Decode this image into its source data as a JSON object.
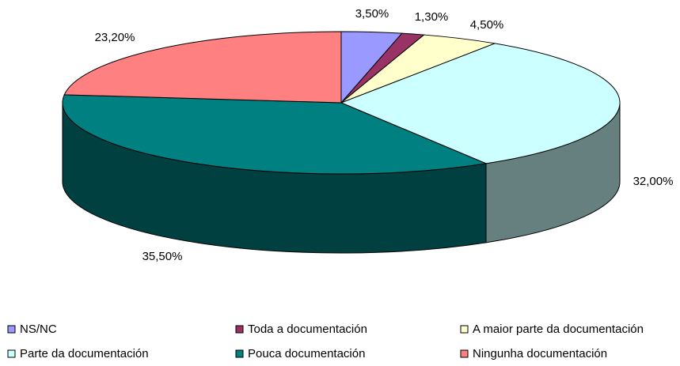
{
  "chart_data": {
    "type": "pie3d",
    "categories": [
      "NS/NC",
      "Toda a documentación",
      "A maior parte da documentación",
      "Parte da documentación",
      "Pouca documentación",
      "Ningunha documentación"
    ],
    "values": [
      3.5,
      1.3,
      4.5,
      32.0,
      35.5,
      23.2
    ],
    "value_labels": [
      "3,50%",
      "1,30%",
      "4,50%",
      "32,00%",
      "35,50%",
      "23,20%"
    ],
    "colors": [
      "#9999ff",
      "#993366",
      "#ffffcc",
      "#ccffff",
      "#008080",
      "#ff8080"
    ],
    "side_colors": [
      "#5c5c99",
      "#5c1f3d",
      "#99997a",
      "#668080",
      "#004040",
      "#994d4d"
    ],
    "legend": "bottom"
  }
}
